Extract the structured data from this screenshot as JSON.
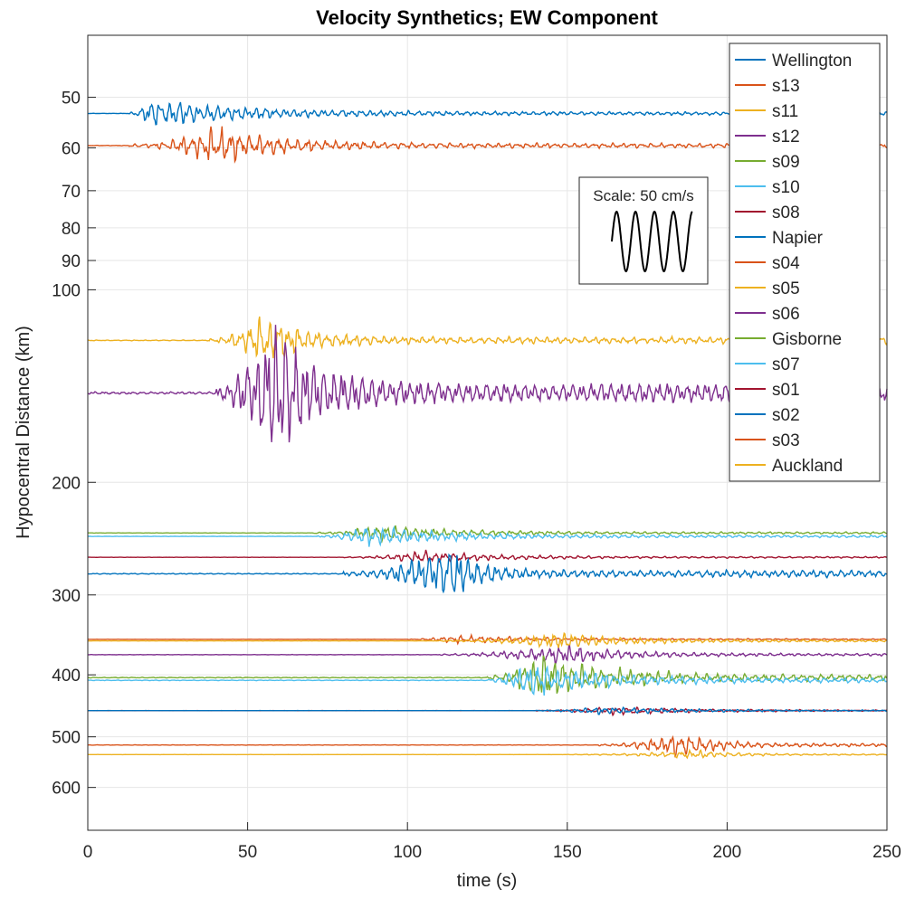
{
  "chart_data": {
    "type": "line",
    "title": "Velocity Synthetics; EW Component",
    "xlabel": "time (s)",
    "ylabel": "Hypocentral Distance (km)",
    "xlim": [
      0,
      250
    ],
    "ylim": [
      40,
      700
    ],
    "yscale": "log",
    "grid": true,
    "legend_position": "top-right",
    "x_ticks": [
      0,
      50,
      100,
      150,
      200,
      250
    ],
    "y_ticks": [
      50,
      60,
      70,
      80,
      90,
      100,
      200,
      300,
      400,
      500,
      600
    ],
    "scale_label": "Scale: 50 cm/s",
    "series": [
      {
        "name": "Wellington",
        "color": "#0072BD",
        "distance_km": 53,
        "onset_s": 13,
        "peak_s": 20,
        "env_end_s": 110,
        "amp": 7
      },
      {
        "name": "s13",
        "color": "#D95319",
        "distance_km": 59.5,
        "onset_s": 13,
        "peak_s": 40,
        "env_end_s": 100,
        "amp": 9
      },
      {
        "name": "s11",
        "color": "#EDB120",
        "distance_km": 120,
        "onset_s": 38,
        "peak_s": 55,
        "env_end_s": 90,
        "amp": 13
      },
      {
        "name": "s12",
        "color": "#7E2F8E",
        "distance_km": 145,
        "onset_s": 40,
        "peak_s": 57,
        "env_end_s": 95,
        "amp": 40
      },
      {
        "name": "s09",
        "color": "#77AC30",
        "distance_km": 240,
        "onset_s": 70,
        "peak_s": 92,
        "env_end_s": 160,
        "amp": 4
      },
      {
        "name": "s10",
        "color": "#4DBEEE",
        "distance_km": 243,
        "onset_s": 72,
        "peak_s": 87,
        "env_end_s": 165,
        "amp": 5
      },
      {
        "name": "s08",
        "color": "#A2142F",
        "distance_km": 262,
        "onset_s": 80,
        "peak_s": 105,
        "env_end_s": 170,
        "amp": 3
      },
      {
        "name": "Napier",
        "color": "#0072BD",
        "distance_km": 278,
        "onset_s": 80,
        "peak_s": 113,
        "env_end_s": 140,
        "amp": 14
      },
      {
        "name": "s04",
        "color": "#D95319",
        "distance_km": 352,
        "onset_s": 100,
        "peak_s": 115,
        "env_end_s": 200,
        "amp": 2
      },
      {
        "name": "s05",
        "color": "#EDB120",
        "distance_km": 354,
        "onset_s": 110,
        "peak_s": 148,
        "env_end_s": 210,
        "amp": 4
      },
      {
        "name": "s06",
        "color": "#7E2F8E",
        "distance_km": 372,
        "onset_s": 110,
        "peak_s": 148,
        "env_end_s": 200,
        "amp": 5
      },
      {
        "name": "Gisborne",
        "color": "#77AC30",
        "distance_km": 404,
        "onset_s": 125,
        "peak_s": 142,
        "env_end_s": 200,
        "amp": 12
      },
      {
        "name": "s07",
        "color": "#4DBEEE",
        "distance_km": 408,
        "onset_s": 125,
        "peak_s": 138,
        "env_end_s": 200,
        "amp": 9
      },
      {
        "name": "s01",
        "color": "#A2142F",
        "distance_km": 455,
        "onset_s": 140,
        "peak_s": 165,
        "env_end_s": 240,
        "amp": 2
      },
      {
        "name": "s02",
        "color": "#0072BD",
        "distance_km": 455,
        "onset_s": 140,
        "peak_s": 160,
        "env_end_s": 240,
        "amp": 2
      },
      {
        "name": "s03",
        "color": "#D95319",
        "distance_km": 515,
        "onset_s": 160,
        "peak_s": 185,
        "env_end_s": 220,
        "amp": 6
      },
      {
        "name": "Auckland",
        "color": "#EDB120",
        "distance_km": 533,
        "onset_s": 150,
        "peak_s": 190,
        "env_end_s": 230,
        "amp": 2
      }
    ]
  }
}
